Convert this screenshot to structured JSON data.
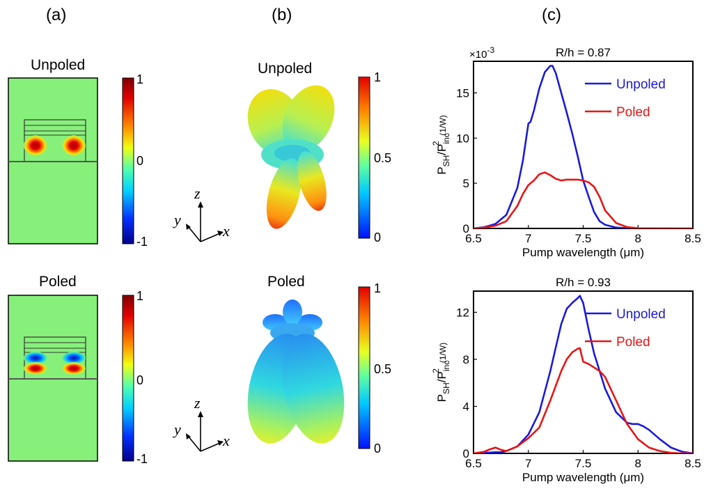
{
  "panels": {
    "a": {
      "label": "(a)"
    },
    "b": {
      "label": "(b)"
    },
    "c": {
      "label": "(c)"
    }
  },
  "colors": {
    "unpoled_line": "#1a1adc",
    "poled_line": "#e81414",
    "field_background": "#86f07a"
  },
  "mode_maps": {
    "top": {
      "title": "Unpoled",
      "colorbar_ticks": [
        "1",
        "0",
        "-1"
      ]
    },
    "bottom": {
      "title": "Poled",
      "colorbar_ticks": [
        "1",
        "0",
        "-1"
      ]
    }
  },
  "far_field": {
    "top": {
      "title": "Unpoled",
      "colorbar_ticks": [
        "1",
        "0.5",
        "0"
      ]
    },
    "bottom": {
      "title": "Poled",
      "colorbar_ticks": [
        "1",
        "0.5",
        "0"
      ]
    },
    "axes": {
      "z": "z",
      "y": "y",
      "x": "x"
    }
  },
  "chart_data": [
    {
      "type": "line",
      "title": "R/h = 0.87",
      "xlabel": "Pump  wavelength (μm)",
      "ylabel_main": "P",
      "ylabel_sub1": "SH",
      "ylabel_slash": "/P",
      "ylabel_sub2": "inc",
      "ylabel_sup": "2",
      "ylabel_unit": "(1/W)",
      "y_multiplier": "×10",
      "y_multiplier_exp": "-3",
      "xlim": [
        6.5,
        8.5
      ],
      "ylim": [
        0,
        18.5
      ],
      "xticks": [
        "6.5",
        "7",
        "7.5",
        "8",
        "8.5"
      ],
      "yticks": [
        "0",
        "5",
        "10",
        "15"
      ],
      "xtick_values": [
        6.5,
        7,
        7.5,
        8,
        8.5
      ],
      "ytick_values": [
        0,
        5,
        10,
        15
      ],
      "legend_placement": "top-right",
      "series": [
        {
          "name": "Unpoled",
          "color": "#1a1adc",
          "x": [
            6.5,
            6.6,
            6.7,
            6.8,
            6.9,
            6.95,
            7.0,
            7.02,
            7.05,
            7.1,
            7.15,
            7.2,
            7.22,
            7.25,
            7.3,
            7.35,
            7.4,
            7.45,
            7.5,
            7.55,
            7.6,
            7.65,
            7.7,
            7.8,
            7.9,
            8.0,
            8.5
          ],
          "y": [
            0.0,
            0.15,
            0.5,
            1.5,
            4.5,
            7.5,
            11.6,
            11.8,
            13.0,
            15.5,
            17.3,
            18.0,
            18.0,
            17.2,
            15.0,
            12.8,
            10.5,
            8.0,
            5.3,
            3.5,
            1.8,
            0.8,
            0.4,
            0.1,
            0.02,
            0.0,
            0.0
          ]
        },
        {
          "name": "Poled",
          "color": "#e81414",
          "x": [
            6.5,
            6.6,
            6.7,
            6.8,
            6.9,
            6.95,
            7.0,
            7.02,
            7.05,
            7.1,
            7.15,
            7.2,
            7.25,
            7.3,
            7.35,
            7.4,
            7.45,
            7.5,
            7.55,
            7.6,
            7.65,
            7.7,
            7.8,
            7.9,
            8.0,
            8.5
          ],
          "y": [
            0.0,
            0.1,
            0.3,
            0.8,
            2.5,
            3.8,
            4.8,
            5.0,
            5.3,
            6.0,
            6.2,
            5.9,
            5.5,
            5.3,
            5.4,
            5.4,
            5.4,
            5.3,
            5.1,
            4.6,
            3.5,
            2.0,
            0.6,
            0.15,
            0.02,
            0.0
          ]
        }
      ]
    },
    {
      "type": "line",
      "title": "R/h = 0.93",
      "xlabel": "Pump  wavelength (μm)",
      "ylabel_main": "P",
      "ylabel_sub1": "SH",
      "ylabel_slash": "/P",
      "ylabel_sub2": "inc",
      "ylabel_sup": "2",
      "ylabel_unit": "(1/W)",
      "xlim": [
        6.5,
        8.5
      ],
      "ylim": [
        0,
        13.8
      ],
      "xticks": [
        "6.5",
        "7",
        "7.5",
        "8",
        "8.5"
      ],
      "yticks": [
        "0",
        "4",
        "8",
        "12"
      ],
      "xtick_values": [
        6.5,
        7,
        7.5,
        8,
        8.5
      ],
      "ytick_values": [
        0,
        4,
        8,
        12
      ],
      "legend_placement": "top-right",
      "series": [
        {
          "name": "Unpoled",
          "color": "#1a1adc",
          "x": [
            6.5,
            6.6,
            6.7,
            6.75,
            6.8,
            6.9,
            7.0,
            7.1,
            7.2,
            7.25,
            7.3,
            7.35,
            7.4,
            7.45,
            7.47,
            7.5,
            7.55,
            7.6,
            7.7,
            7.8,
            7.9,
            7.95,
            8.0,
            8.05,
            8.1,
            8.2,
            8.3,
            8.4,
            8.5
          ],
          "y": [
            0.0,
            0.05,
            0.1,
            0.1,
            0.2,
            0.6,
            1.6,
            3.5,
            7.0,
            9.0,
            11.0,
            12.3,
            12.8,
            13.2,
            13.4,
            12.8,
            10.5,
            8.5,
            5.5,
            3.5,
            2.6,
            2.5,
            2.5,
            2.3,
            2.0,
            1.2,
            0.5,
            0.15,
            0.0
          ]
        },
        {
          "name": "Poled",
          "color": "#e81414",
          "x": [
            6.5,
            6.6,
            6.65,
            6.7,
            6.75,
            6.8,
            6.9,
            7.0,
            7.1,
            7.2,
            7.3,
            7.35,
            7.4,
            7.45,
            7.47,
            7.5,
            7.55,
            7.6,
            7.65,
            7.7,
            7.8,
            7.9,
            8.0,
            8.1,
            8.2,
            8.3,
            8.4,
            8.5
          ],
          "y": [
            0.0,
            0.15,
            0.35,
            0.5,
            0.3,
            0.2,
            0.6,
            1.3,
            2.2,
            4.5,
            7.0,
            8.0,
            8.6,
            8.9,
            8.95,
            7.8,
            7.6,
            7.3,
            7.0,
            6.5,
            4.5,
            2.5,
            1.2,
            0.5,
            0.2,
            0.05,
            0.0,
            0.0
          ]
        }
      ]
    }
  ]
}
